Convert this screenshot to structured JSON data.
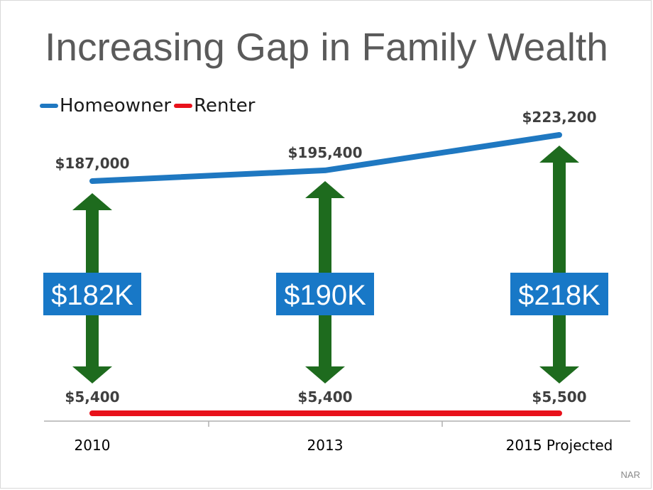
{
  "chart_data": {
    "type": "line",
    "title": "Increasing Gap in Family Wealth",
    "categories": [
      "2010",
      "2013",
      "2015 Projected"
    ],
    "series": [
      {
        "name": "Homeowner",
        "color": "#1f78c1",
        "values": [
          187000,
          195400,
          223200
        ],
        "labels": [
          "$187,000",
          "$195,400",
          "$223,200"
        ]
      },
      {
        "name": "Renter",
        "color": "#e8111b",
        "values": [
          5400,
          5400,
          5500
        ],
        "labels": [
          "$5,400",
          "$5,400",
          "$5,500"
        ]
      }
    ],
    "gaps": [
      {
        "category": "2010",
        "label": "$182K",
        "value": 182000
      },
      {
        "category": "2013",
        "label": "$190K",
        "value": 190000
      },
      {
        "category": "2015 Projected",
        "label": "$218K",
        "value": 218000
      }
    ],
    "arrow_color": "#1e6b1e",
    "gap_box_color": "#1878c7",
    "xlabel": "",
    "ylabel": "",
    "ylim": [
      0,
      250000
    ],
    "grid": false,
    "legend_position": "top-left"
  },
  "source": "NAR"
}
